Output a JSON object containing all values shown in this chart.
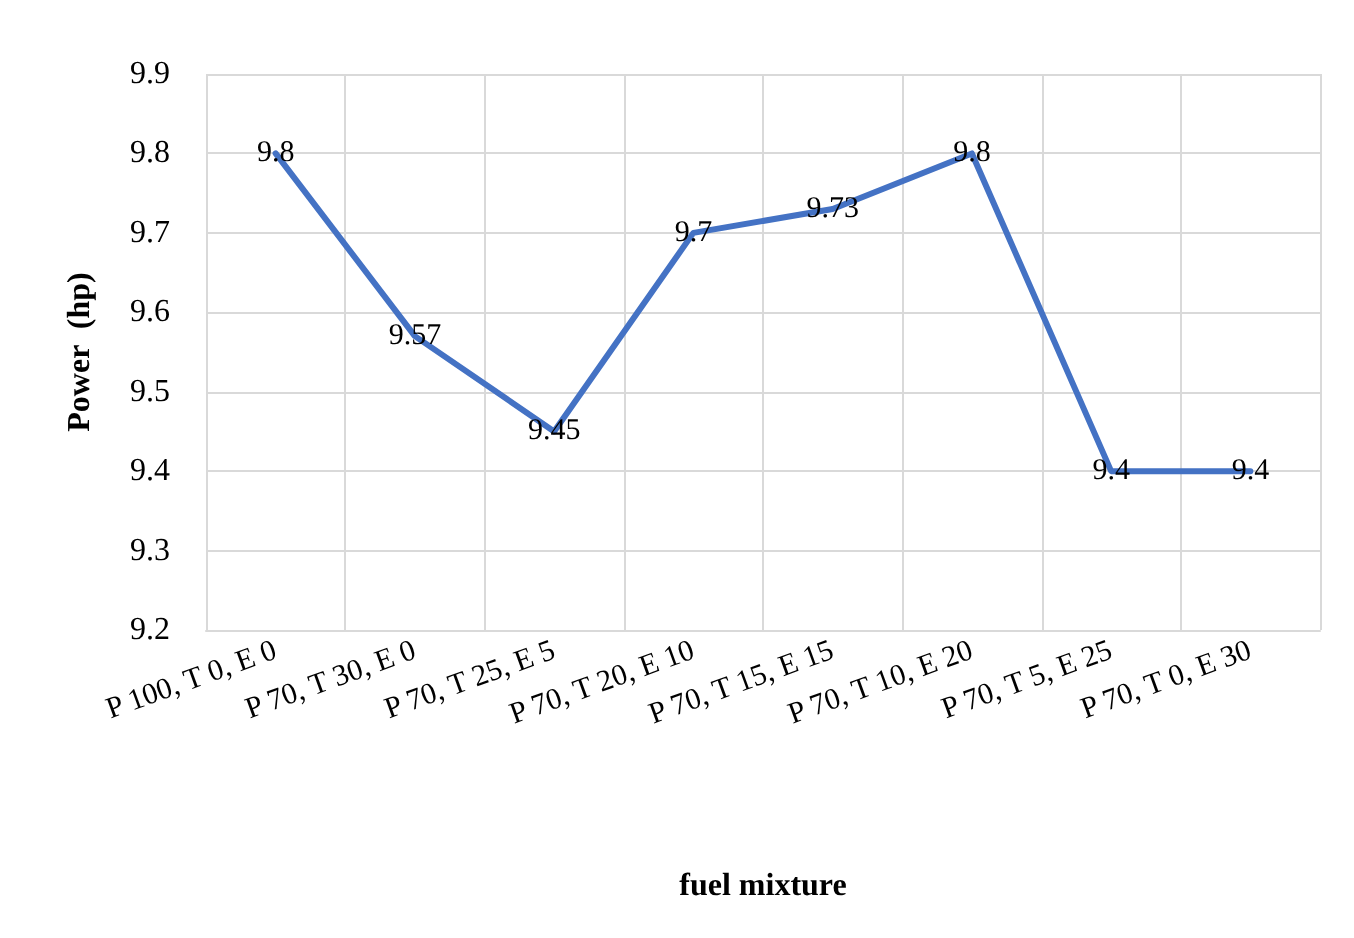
{
  "chart_data": {
    "type": "line",
    "xlabel": "fuel mixture",
    "ylabel": "Power  (hp)",
    "categories": [
      "P 100, T 0, E 0",
      "P 70, T 30, E 0",
      "P 70, T 25, E 5",
      "P 70, T 20, E 10",
      "P 70, T 15, E 15",
      "P 70, T 10, E 20",
      "P 70, T 5, E 25",
      "P 70, T 0, E 30"
    ],
    "series": [
      {
        "color": "#4472c4",
        "values": [
          9.8,
          9.57,
          9.45,
          9.7,
          9.73,
          9.8,
          9.4,
          9.4
        ]
      }
    ],
    "ylim": [
      9.2,
      9.9
    ],
    "yticks": [
      9.2,
      9.3,
      9.4,
      9.5,
      9.6,
      9.7,
      9.8,
      9.9
    ],
    "grid": true,
    "line_style": "solid",
    "data_labels": true
  }
}
